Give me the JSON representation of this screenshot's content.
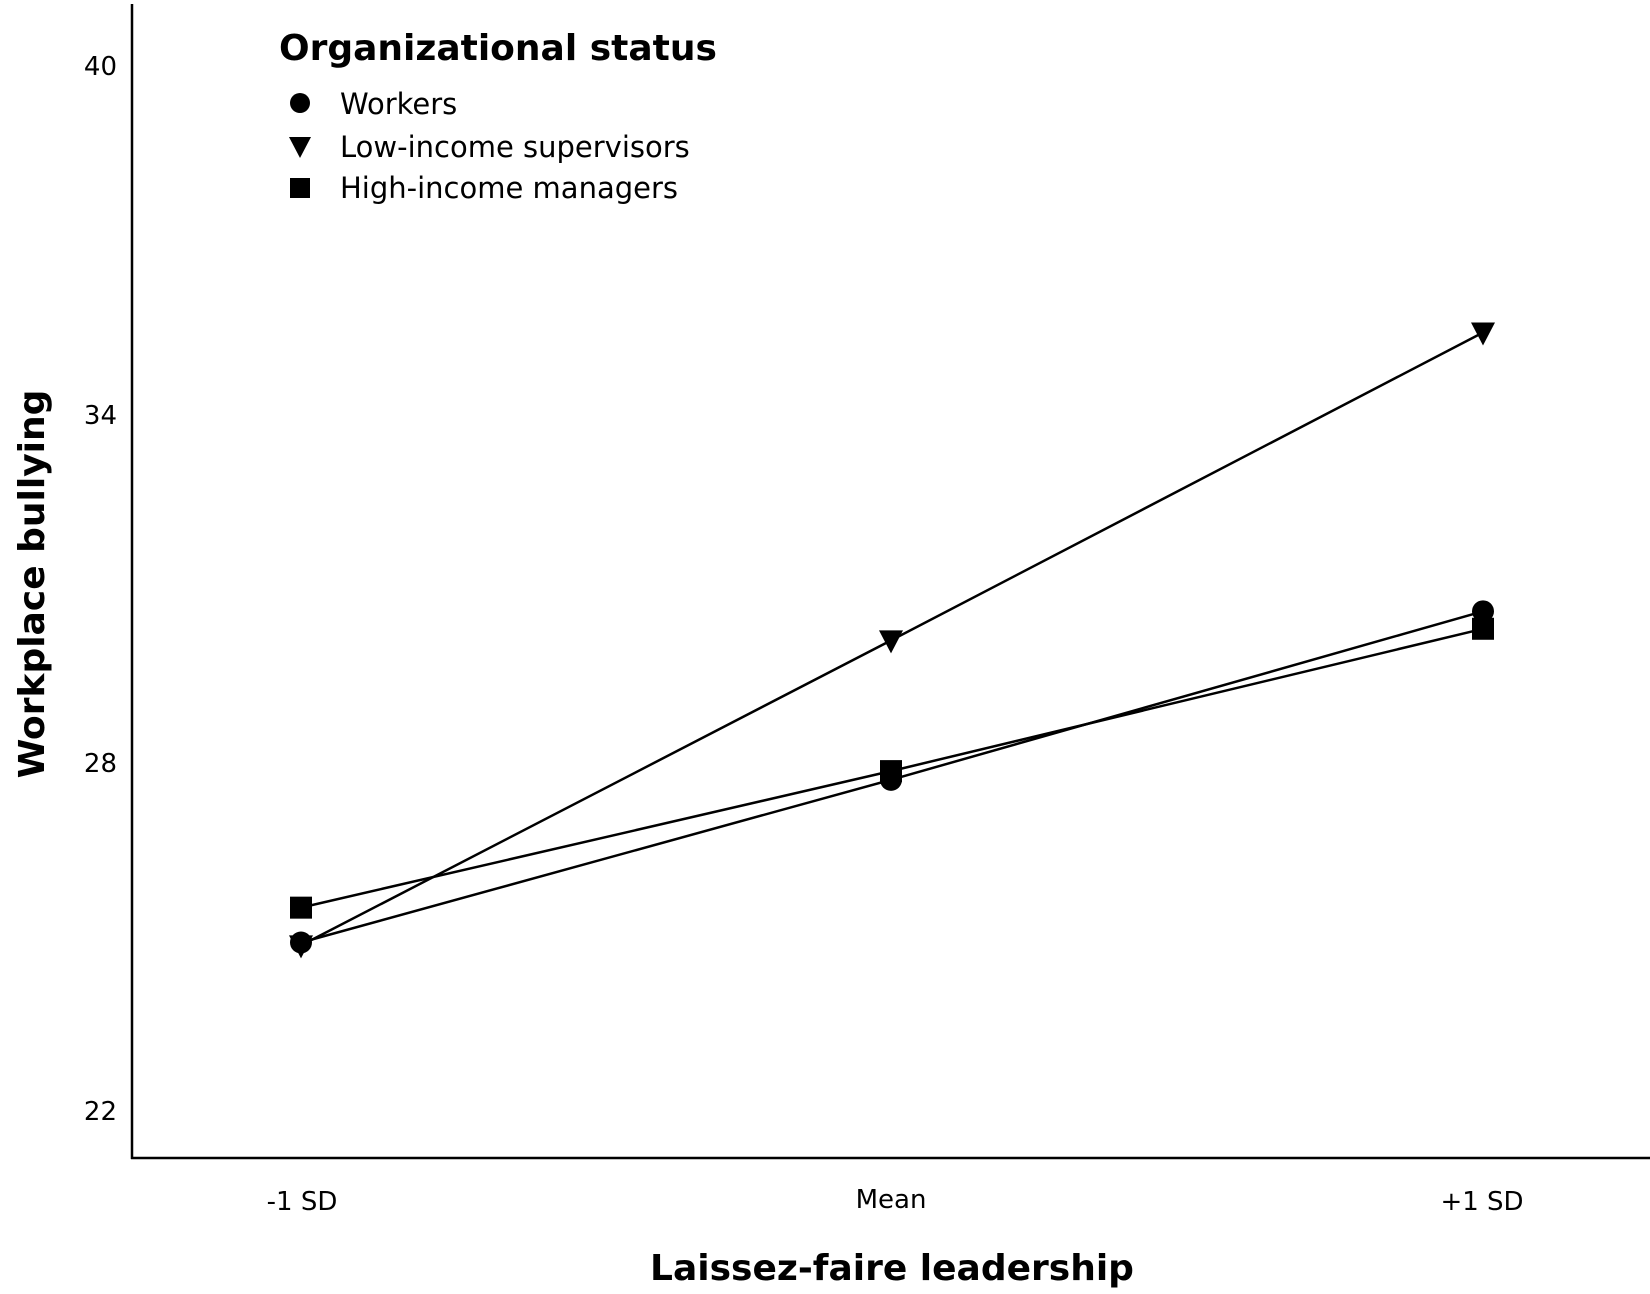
{
  "chart_data": {
    "type": "line",
    "title": "",
    "xlabel": "Laissez-faire leadership",
    "ylabel": "Workplace bullying",
    "categories": [
      "-1 SD",
      "Mean",
      "+1 SD"
    ],
    "ylim": [
      21,
      41
    ],
    "yticks": [
      22,
      28,
      34,
      40
    ],
    "grid": false,
    "legend": {
      "title": "Organizational status",
      "position": "top-left"
    },
    "series": [
      {
        "name": "Workers",
        "marker": "circle",
        "values": [
          24.9,
          27.7,
          30.6
        ]
      },
      {
        "name": "Low-income supervisors",
        "marker": "triangle-down",
        "values": [
          24.85,
          30.1,
          35.4
        ]
      },
      {
        "name": "High-income managers",
        "marker": "square",
        "values": [
          25.5,
          27.85,
          30.3
        ]
      }
    ]
  },
  "legend": {
    "title": "Organizational status",
    "items": [
      {
        "label": "Workers",
        "icon": "circle-marker-icon"
      },
      {
        "label": "Low-income supervisors",
        "icon": "triangle-down-marker-icon"
      },
      {
        "label": "High-income managers",
        "icon": "square-marker-icon"
      }
    ]
  },
  "axes": {
    "x_title": "Laissez-faire leadership",
    "y_title": "Workplace bullying",
    "x_ticks": [
      "-1 SD",
      "Mean",
      "+1 SD"
    ],
    "y_ticks": [
      "22",
      "28",
      "34",
      "40"
    ]
  },
  "colors": {
    "line": "#000000",
    "background": "#ffffff"
  }
}
